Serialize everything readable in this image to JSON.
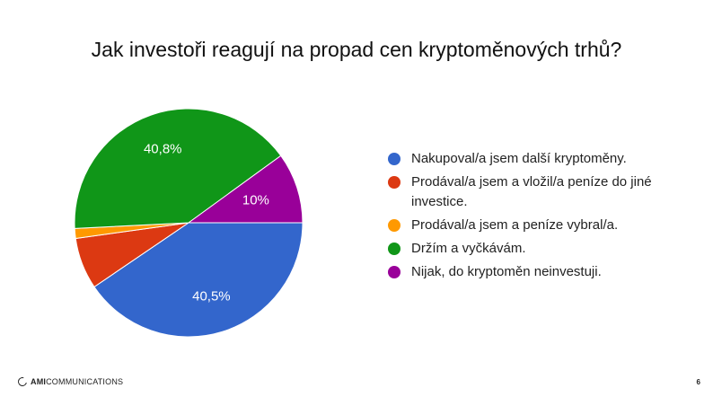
{
  "slide": {
    "logo_text_bold": "AMI",
    "logo_text": "COMMUNICATIONS",
    "page_number": "6"
  },
  "chart_data": {
    "type": "pie",
    "title": "Jak investoři reagují na propad cen kryptoměnových trhů?",
    "legend_position": "right",
    "slices": [
      {
        "name": "Nakupoval/a jsem další kryptoměny.",
        "value": 40.5,
        "label": "40,5%",
        "color": "#3366cc"
      },
      {
        "name": "Prodával/a jsem a vložil/a peníze do jiné investice.",
        "value": 7.3,
        "label": "",
        "color": "#dc3912"
      },
      {
        "name": "Prodával/a jsem a peníze vybral/a.",
        "value": 1.4,
        "label": "",
        "color": "#ff9900"
      },
      {
        "name": "Držím a vyčkávám.",
        "value": 40.8,
        "label": "40,8%",
        "color": "#109618"
      },
      {
        "name": "Nijak, do kryptoměn neinvestuji.",
        "value": 10.0,
        "label": "10%",
        "color": "#990099"
      }
    ]
  }
}
